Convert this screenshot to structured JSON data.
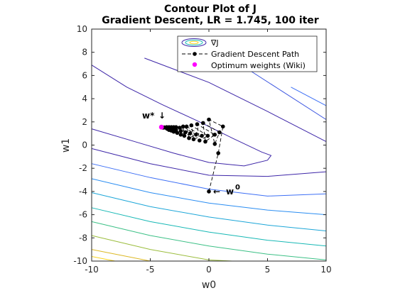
{
  "chart_data": {
    "type": "line",
    "title_line1": "Contour Plot of J",
    "title_line2": "Gradient Descent, LR = 1.745, 100 iter",
    "xlabel": "w0",
    "ylabel": "w1",
    "xlim": [
      -10,
      10
    ],
    "ylim": [
      -10,
      10
    ],
    "xticks": [
      -10,
      -5,
      0,
      5,
      10
    ],
    "yticks": [
      -10,
      -8,
      -6,
      -4,
      -2,
      0,
      2,
      4,
      6,
      8,
      10
    ],
    "xtick_labels": [
      "-10",
      "-5",
      "0",
      "5",
      "10"
    ],
    "ytick_labels": [
      "-10",
      "-8",
      "-6",
      "-4",
      "-2",
      "0",
      "2",
      "4",
      "6",
      "8",
      "10"
    ],
    "grid": false,
    "legend": {
      "placement": "top-right",
      "entries": [
        "∇J",
        "Gradient Descent Path",
        "Optimum weights (Wiki)"
      ]
    },
    "series": [
      {
        "name": "Gradient Descent Path",
        "color": "#000000",
        "points": [
          [
            0.0,
            -4.0
          ],
          [
            0.8,
            -0.7
          ],
          [
            1.2,
            1.6
          ],
          [
            0.0,
            2.2
          ],
          [
            0.5,
            0.1
          ],
          [
            0.9,
            1.1
          ],
          [
            -0.5,
            1.9
          ],
          [
            -0.3,
            0.3
          ],
          [
            0.5,
            0.9
          ],
          [
            -1.0,
            1.8
          ],
          [
            -0.8,
            0.4
          ],
          [
            -0.1,
            0.8
          ],
          [
            -1.5,
            1.7
          ],
          [
            -1.3,
            0.5
          ],
          [
            -0.6,
            0.8
          ],
          [
            -1.9,
            1.6
          ],
          [
            -1.7,
            0.6
          ],
          [
            -1.1,
            0.9
          ],
          [
            -2.2,
            1.6
          ],
          [
            -2.1,
            0.8
          ],
          [
            -1.6,
            1.0
          ],
          [
            -2.5,
            1.5
          ],
          [
            -2.4,
            0.9
          ],
          [
            -2.0,
            1.1
          ],
          [
            -2.8,
            1.55
          ],
          [
            -2.7,
            1.05
          ],
          [
            -2.4,
            1.2
          ],
          [
            -3.0,
            1.55
          ],
          [
            -3.0,
            1.15
          ],
          [
            -2.8,
            1.3
          ],
          [
            -3.2,
            1.55
          ],
          [
            -3.2,
            1.25
          ],
          [
            -3.1,
            1.35
          ],
          [
            -3.4,
            1.55
          ],
          [
            -3.4,
            1.3
          ],
          [
            -3.35,
            1.45
          ],
          [
            -3.6,
            1.55
          ],
          [
            -3.55,
            1.4
          ],
          [
            -3.7,
            1.5
          ],
          [
            -3.8,
            1.52
          ],
          [
            -3.9,
            1.5
          ],
          [
            -4.0,
            1.52
          ]
        ]
      },
      {
        "name": "Optimum weights (Wiki)",
        "color": "#ff00ff",
        "points": [
          [
            -4.05,
            1.55
          ]
        ]
      }
    ],
    "contours": [
      {
        "color": "#3d26a8",
        "points": [
          [
            -10,
            1.4
          ],
          [
            -6,
            0.2
          ],
          [
            -3,
            -0.7
          ],
          [
            0,
            -1.5
          ],
          [
            3,
            -1.8
          ],
          [
            5,
            -1.3
          ],
          [
            5.3,
            -0.9
          ],
          [
            4.5,
            -0.6
          ],
          [
            2,
            0.6
          ],
          [
            -1,
            2.1
          ],
          [
            -4,
            3.5
          ],
          [
            -7,
            5
          ],
          [
            -10,
            6.9
          ]
        ]
      },
      {
        "color": "#3d26a8",
        "points": [
          [
            -10,
            -0.3
          ],
          [
            -5,
            -1.6
          ],
          [
            0,
            -2.6
          ],
          [
            5,
            -2.7
          ],
          [
            10,
            -2.3
          ]
        ]
      },
      {
        "color": "#3d26a8",
        "points": [
          [
            -5.5,
            7.5
          ],
          [
            0,
            5.4
          ],
          [
            5,
            2.9
          ],
          [
            10,
            0.3
          ]
        ]
      },
      {
        "color": "#3953e0",
        "points": [
          [
            2,
            7.4
          ],
          [
            6,
            4.8
          ],
          [
            10,
            2.2
          ]
        ]
      },
      {
        "color": "#3d6ff5",
        "points": [
          [
            -10,
            -1.6
          ],
          [
            -5,
            -2.8
          ],
          [
            0,
            -3.8
          ],
          [
            5,
            -4.4
          ],
          [
            10,
            -4.2
          ]
        ]
      },
      {
        "color": "#3d6ff5",
        "points": [
          [
            7,
            5
          ],
          [
            10,
            3.4
          ]
        ]
      },
      {
        "color": "#2a8df2",
        "points": [
          [
            -10,
            -2.9
          ],
          [
            -5,
            -4.1
          ],
          [
            0,
            -5.0
          ],
          [
            5,
            -5.6
          ],
          [
            10,
            -6.0
          ]
        ]
      },
      {
        "color": "#1ca6d8",
        "points": [
          [
            -10,
            -4.1
          ],
          [
            -5,
            -5.3
          ],
          [
            0,
            -6.2
          ],
          [
            5,
            -6.9
          ],
          [
            10,
            -7.4
          ]
        ]
      },
      {
        "color": "#17b8b5",
        "points": [
          [
            -10,
            -5.4
          ],
          [
            -5,
            -6.6
          ],
          [
            0,
            -7.5
          ],
          [
            5,
            -8.2
          ],
          [
            10,
            -8.7
          ]
        ]
      },
      {
        "color": "#3cc086",
        "points": [
          [
            -10,
            -6.6
          ],
          [
            -5,
            -7.8
          ],
          [
            0,
            -8.7
          ],
          [
            5,
            -9.4
          ],
          [
            10,
            -9.9
          ]
        ]
      },
      {
        "color": "#9bbd3d",
        "points": [
          [
            -10,
            -7.8
          ],
          [
            -5,
            -9.0
          ],
          [
            0,
            -9.9
          ],
          [
            2,
            -10
          ]
        ]
      },
      {
        "color": "#dcb927",
        "points": [
          [
            -10,
            -9.0
          ],
          [
            -5,
            -10
          ]
        ]
      },
      {
        "color": "#f8d421",
        "points": [
          [
            -10,
            -9.6
          ],
          [
            -8,
            -10
          ]
        ]
      }
    ],
    "annotations": [
      {
        "text": "w*",
        "arrow": "↓",
        "x": -4.05,
        "y": 1.55
      },
      {
        "text": "w",
        "superscript": "0",
        "arrow": "←",
        "x": 0.0,
        "y": -4.0
      }
    ]
  }
}
